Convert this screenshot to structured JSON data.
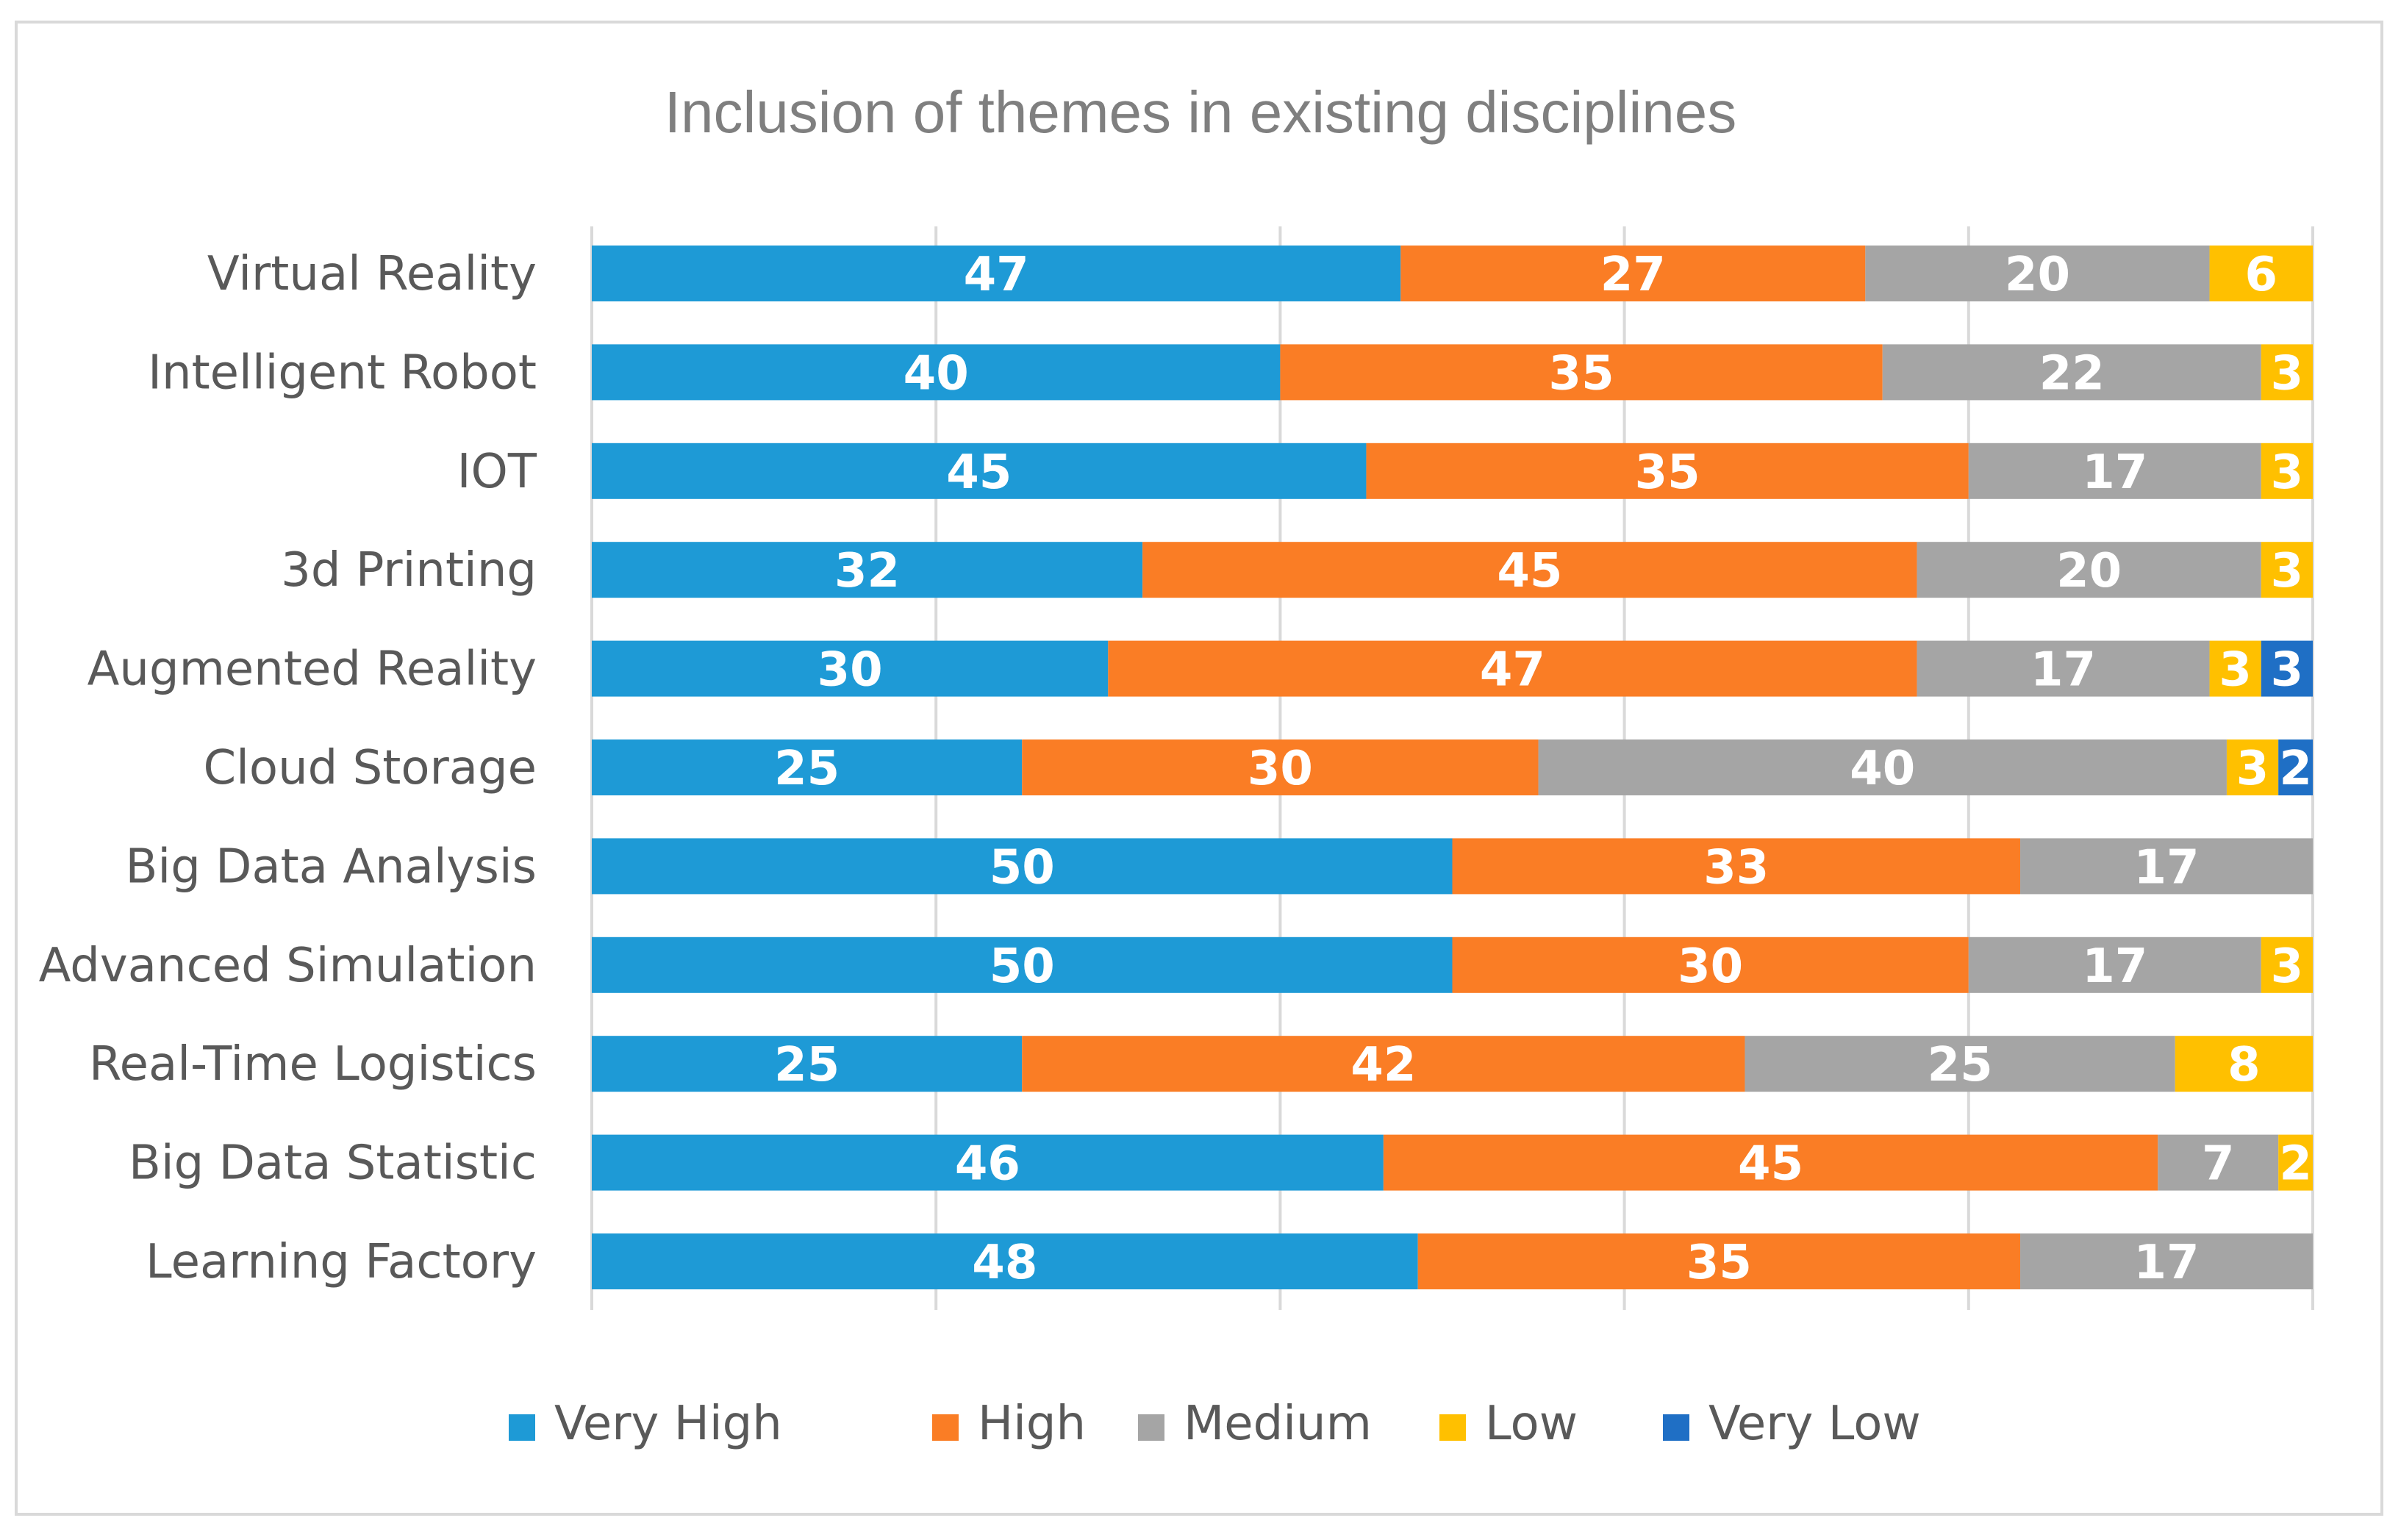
{
  "chart_data": {
    "type": "bar",
    "orientation": "horizontal",
    "stacked": true,
    "title": "Inclusion of themes in existing disciplines",
    "xlabel": "",
    "ylabel": "",
    "xlim": [
      0,
      100
    ],
    "grid": true,
    "legend_position": "bottom",
    "categories": [
      "Virtual Reality",
      "Intelligent Robot",
      "IOT",
      "3d Printing",
      "Augmented Reality",
      "Cloud Storage",
      "Big Data Analysis",
      "Advanced Simulation",
      "Real-Time Logistics",
      "Big Data Statistic",
      "Learning Factory"
    ],
    "series": [
      {
        "name": "Very High",
        "color": "#1e9ad6",
        "values": [
          47,
          40,
          45,
          32,
          30,
          25,
          50,
          50,
          25,
          46,
          48
        ]
      },
      {
        "name": "High",
        "color": "#fa7d25",
        "values": [
          27,
          35,
          35,
          45,
          47,
          30,
          33,
          30,
          42,
          45,
          35
        ]
      },
      {
        "name": "Medium",
        "color": "#a5a5a5",
        "values": [
          20,
          22,
          17,
          20,
          17,
          40,
          17,
          17,
          25,
          7,
          17
        ]
      },
      {
        "name": "Low",
        "color": "#ffc000",
        "values": [
          6,
          3,
          3,
          3,
          3,
          3,
          0,
          3,
          8,
          2,
          0
        ]
      },
      {
        "name": "Very Low",
        "color": "#1f6fc5",
        "values": [
          0,
          0,
          0,
          0,
          3,
          2,
          0,
          0,
          0,
          0,
          0
        ]
      }
    ]
  }
}
